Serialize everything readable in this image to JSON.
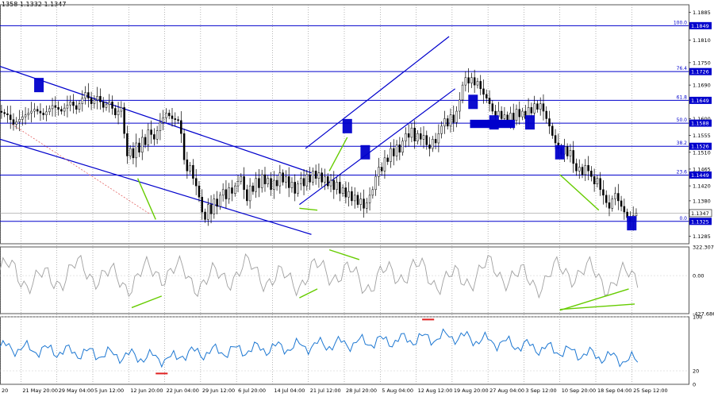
{
  "header": {
    "ohlc_text": "1358 1.1332 1.1347"
  },
  "chart_data": {
    "type": "candlestick",
    "main_panel": {
      "y_ticks": [
        "1.1885",
        "1.1810",
        "1.1750",
        "1.1690",
        "1.1600",
        "1.1555",
        "1.1510",
        "1.1465",
        "1.1420",
        "1.1380",
        "1.1285"
      ],
      "y_tick_values": [
        1.1885,
        1.181,
        1.175,
        1.169,
        1.16,
        1.1555,
        1.151,
        1.1465,
        1.142,
        1.138,
        1.1285
      ],
      "ylim": [
        1.1265,
        1.1905
      ],
      "current_price": "1.1347",
      "current_price_value": 1.1347,
      "fib_levels": [
        {
          "pct": "100.0",
          "label": "1.1849",
          "value": 1.1849
        },
        {
          "pct": "76.4",
          "label": "1.1726",
          "value": 1.1726
        },
        {
          "pct": "61.8",
          "label": "1.1649",
          "value": 1.1649
        },
        {
          "pct": "50.0",
          "label": "1.1588",
          "value": 1.1588
        },
        {
          "pct": "38.2",
          "label": "1.1526",
          "value": 1.1526
        },
        {
          "pct": "23.6",
          "label": "1.1449",
          "value": 1.1449
        },
        {
          "pct": "0.0",
          "label": "1.1325",
          "value": 1.1325
        }
      ],
      "price_path": [
        [
          0,
          1.162
        ],
        [
          3,
          1.161
        ],
        [
          5,
          1.1585
        ],
        [
          8,
          1.1605
        ],
        [
          12,
          1.1625
        ],
        [
          15,
          1.161
        ],
        [
          18,
          1.1635
        ],
        [
          21,
          1.162
        ],
        [
          24,
          1.1645
        ],
        [
          26,
          1.1625
        ],
        [
          28,
          1.1655
        ],
        [
          29,
          1.167
        ],
        [
          31,
          1.164
        ],
        [
          33,
          1.166
        ],
        [
          35,
          1.163
        ],
        [
          37,
          1.1645
        ],
        [
          39,
          1.161
        ],
        [
          41,
          1.163
        ],
        [
          42,
          1.156
        ],
        [
          43,
          1.15
        ],
        [
          44,
          1.152
        ],
        [
          45,
          1.1495
        ],
        [
          46,
          1.1535
        ],
        [
          47,
          1.151
        ],
        [
          48,
          1.155
        ],
        [
          49,
          1.153
        ],
        [
          50,
          1.157
        ],
        [
          52,
          1.1545
        ],
        [
          54,
          1.159
        ],
        [
          56,
          1.1615
        ],
        [
          58,
          1.16
        ],
        [
          60,
          1.1595
        ],
        [
          61,
          1.156
        ],
        [
          62,
          1.149
        ],
        [
          63,
          1.146
        ],
        [
          64,
          1.1475
        ],
        [
          65,
          1.144
        ],
        [
          66,
          1.142
        ],
        [
          67,
          1.139
        ],
        [
          68,
          1.135
        ],
        [
          69,
          1.133
        ],
        [
          70,
          1.137
        ],
        [
          71,
          1.1345
        ],
        [
          72,
          1.1385
        ],
        [
          73,
          1.1365
        ],
        [
          74,
          1.1395
        ],
        [
          75,
          1.141
        ],
        [
          76,
          1.1385
        ],
        [
          77,
          1.1415
        ],
        [
          78,
          1.14
        ],
        [
          79,
          1.142
        ],
        [
          81,
          1.1445
        ],
        [
          82,
          1.141
        ],
        [
          83,
          1.138
        ],
        [
          84,
          1.142
        ],
        [
          85,
          1.1405
        ],
        [
          86,
          1.144
        ],
        [
          87,
          1.1415
        ],
        [
          88,
          1.145
        ],
        [
          89,
          1.1425
        ],
        [
          90,
          1.144
        ],
        [
          91,
          1.141
        ],
        [
          92,
          1.1435
        ],
        [
          93,
          1.142
        ],
        [
          94,
          1.1455
        ],
        [
          95,
          1.143
        ],
        [
          96,
          1.1445
        ],
        [
          97,
          1.1415
        ],
        [
          98,
          1.143
        ],
        [
          99,
          1.14
        ],
        [
          100,
          1.1425
        ],
        [
          101,
          1.144
        ],
        [
          102,
          1.142
        ],
        [
          103,
          1.145
        ],
        [
          104,
          1.143
        ],
        [
          105,
          1.146
        ],
        [
          106,
          1.144
        ],
        [
          107,
          1.1455
        ],
        [
          108,
          1.143
        ],
        [
          109,
          1.1445
        ],
        [
          110,
          1.142
        ],
        [
          111,
          1.1435
        ],
        [
          112,
          1.141
        ],
        [
          113,
          1.143
        ],
        [
          114,
          1.14
        ],
        [
          115,
          1.1415
        ],
        [
          116,
          1.139
        ],
        [
          117,
          1.1405
        ],
        [
          118,
          1.138
        ],
        [
          119,
          1.1395
        ],
        [
          120,
          1.137
        ],
        [
          121,
          1.1385
        ],
        [
          122,
          1.136
        ],
        [
          123,
          1.1375
        ],
        [
          124,
          1.1395
        ],
        [
          125,
          1.141
        ],
        [
          126,
          1.1445
        ],
        [
          127,
          1.147
        ],
        [
          128,
          1.146
        ],
        [
          129,
          1.1495
        ],
        [
          130,
          1.1485
        ],
        [
          131,
          1.152
        ],
        [
          132,
          1.15
        ],
        [
          133,
          1.153
        ],
        [
          134,
          1.151
        ],
        [
          135,
          1.154
        ],
        [
          136,
          1.156
        ],
        [
          137,
          1.155
        ],
        [
          138,
          1.1575
        ],
        [
          139,
          1.154
        ],
        [
          140,
          1.156
        ],
        [
          141,
          1.1545
        ],
        [
          142,
          1.1555
        ],
        [
          143,
          1.153
        ],
        [
          144,
          1.152
        ],
        [
          145,
          1.1545
        ],
        [
          146,
          1.1535
        ],
        [
          147,
          1.156
        ],
        [
          148,
          1.158
        ],
        [
          149,
          1.16
        ],
        [
          150,
          1.158
        ],
        [
          151,
          1.161
        ],
        [
          152,
          1.159
        ],
        [
          153,
          1.162
        ],
        [
          154,
          1.165
        ],
        [
          155,
          1.169
        ],
        [
          156,
          1.171
        ],
        [
          157,
          1.1695
        ],
        [
          158,
          1.171
        ],
        [
          159,
          1.169
        ],
        [
          160,
          1.17
        ],
        [
          161,
          1.168
        ],
        [
          162,
          1.1665
        ],
        [
          163,
          1.1655
        ],
        [
          164,
          1.164
        ],
        [
          165,
          1.162
        ],
        [
          166,
          1.1605
        ],
        [
          167,
          1.162
        ],
        [
          168,
          1.16
        ],
        [
          169,
          1.161
        ],
        [
          170,
          1.159
        ],
        [
          171,
          1.1615
        ],
        [
          172,
          1.1595
        ],
        [
          173,
          1.1625
        ],
        [
          174,
          1.1605
        ],
        [
          175,
          1.162
        ],
        [
          176,
          1.16
        ],
        [
          177,
          1.163
        ],
        [
          178,
          1.1615
        ],
        [
          179,
          1.164
        ],
        [
          180,
          1.1625
        ],
        [
          181,
          1.164
        ],
        [
          182,
          1.162
        ],
        [
          183,
          1.16
        ],
        [
          184,
          1.158
        ],
        [
          185,
          1.1555
        ],
        [
          186,
          1.1535
        ],
        [
          187,
          1.152
        ],
        [
          188,
          1.1505
        ],
        [
          189,
          1.1525
        ],
        [
          190,
          1.15
        ],
        [
          191,
          1.1515
        ],
        [
          192,
          1.148
        ],
        [
          193,
          1.146
        ],
        [
          194,
          1.147
        ],
        [
          195,
          1.145
        ],
        [
          196,
          1.1475
        ],
        [
          197,
          1.146
        ],
        [
          198,
          1.1445
        ],
        [
          199,
          1.1425
        ],
        [
          200,
          1.144
        ],
        [
          201,
          1.141
        ],
        [
          202,
          1.1395
        ],
        [
          203,
          1.1375
        ],
        [
          204,
          1.136
        ],
        [
          205,
          1.1385
        ],
        [
          206,
          1.14
        ],
        [
          207,
          1.138
        ],
        [
          208,
          1.1365
        ],
        [
          209,
          1.135
        ],
        [
          210,
          1.1335
        ],
        [
          211,
          1.1325
        ],
        [
          212,
          1.134
        ],
        [
          213,
          1.1347
        ]
      ]
    },
    "cci_panel": {
      "y_ticks": [
        "322.3074",
        "0.00",
        "-427.686"
      ],
      "y_tick_values": [
        322.3074,
        0,
        -427.686
      ],
      "ylim": [
        -427.686,
        322.3074
      ]
    },
    "rsi_panel": {
      "y_ticks": [
        "100",
        "20",
        "0"
      ],
      "y_tick_values": [
        100,
        20,
        0
      ],
      "ylim": [
        0,
        100
      ]
    },
    "x_ticks": [
      "20",
      "21 May 20:00",
      "29 May 04:00",
      "5 Jun 12:00",
      "12 Jun 20:00",
      "22 Jun 04:00",
      "29 Jun 12:00",
      "6 Jul 20:00",
      "14 Jul 04:00",
      "21 Jul 12:00",
      "28 Jul 20:00",
      "5 Aug 04:00",
      "12 Aug 12:00",
      "19 Aug 20:00",
      "27 Aug 04:00",
      "3 Sep 12:00",
      "10 Sep 20:00",
      "18 Sep 04:00",
      "25 Sep 12:00"
    ],
    "x_tick_index": [
      0,
      7,
      19,
      31,
      43,
      55,
      67,
      79,
      91,
      103,
      115,
      127,
      139,
      151,
      163,
      175,
      187,
      199,
      211
    ],
    "x_range": [
      0,
      230
    ]
  },
  "colors": {
    "candle": "#000000",
    "level": "#0000cc",
    "trendline": "#0000cc",
    "green": "#66cc00",
    "osc": "#a0a0a0",
    "rsi": "#1e78d2",
    "red": "#e02020",
    "grid": "#888888"
  }
}
